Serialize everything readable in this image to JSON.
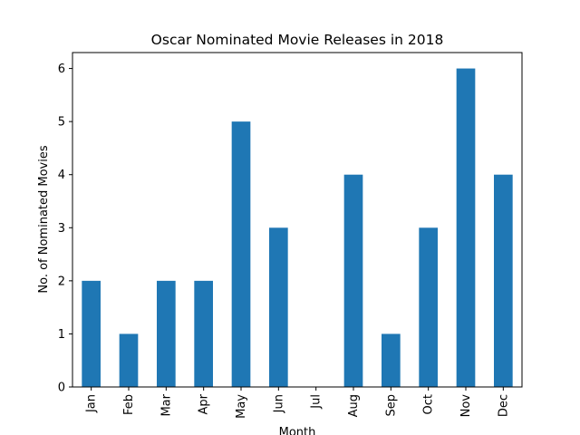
{
  "chart_data": {
    "type": "bar",
    "title": "Oscar Nominated Movie Releases in 2018",
    "xlabel": "Month",
    "ylabel": "No. of Nominated Movies",
    "categories": [
      "Jan",
      "Feb",
      "Mar",
      "Apr",
      "May",
      "Jun",
      "Jul",
      "Aug",
      "Sep",
      "Oct",
      "Nov",
      "Dec"
    ],
    "values": [
      2,
      1,
      2,
      2,
      5,
      3,
      0,
      4,
      1,
      3,
      6,
      4
    ],
    "ylim": [
      0,
      6.3
    ],
    "yticks": [
      0,
      1,
      2,
      3,
      4,
      5,
      6
    ],
    "bar_color": "#1f77b4",
    "grid": false,
    "legend": "none"
  }
}
